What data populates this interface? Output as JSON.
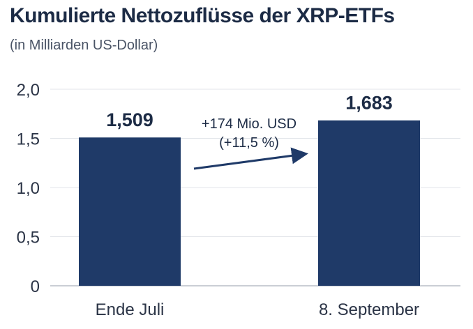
{
  "chart_data": {
    "type": "bar",
    "title": "Kumulierte Nettozuflüsse der XRP-ETFs",
    "subtitle": "(in Milliarden US-Dollar)",
    "categories": [
      "Ende Juli",
      "8. September"
    ],
    "values": [
      1.509,
      1.683
    ],
    "data_labels": [
      "1,509",
      "1,683"
    ],
    "y_ticks": [
      {
        "value": 0,
        "label": "0"
      },
      {
        "value": 0.5,
        "label": "0,5"
      },
      {
        "value": 1.0,
        "label": "1,0"
      },
      {
        "value": 1.5,
        "label": "1,5"
      },
      {
        "value": 2.0,
        "label": "2,0"
      }
    ],
    "ylim": [
      0,
      2.0
    ],
    "grid": true,
    "bar_color": "#1f3a68",
    "annotation": {
      "line1": "+174 Mio. USD",
      "line2": "(+11,5 %)"
    }
  }
}
